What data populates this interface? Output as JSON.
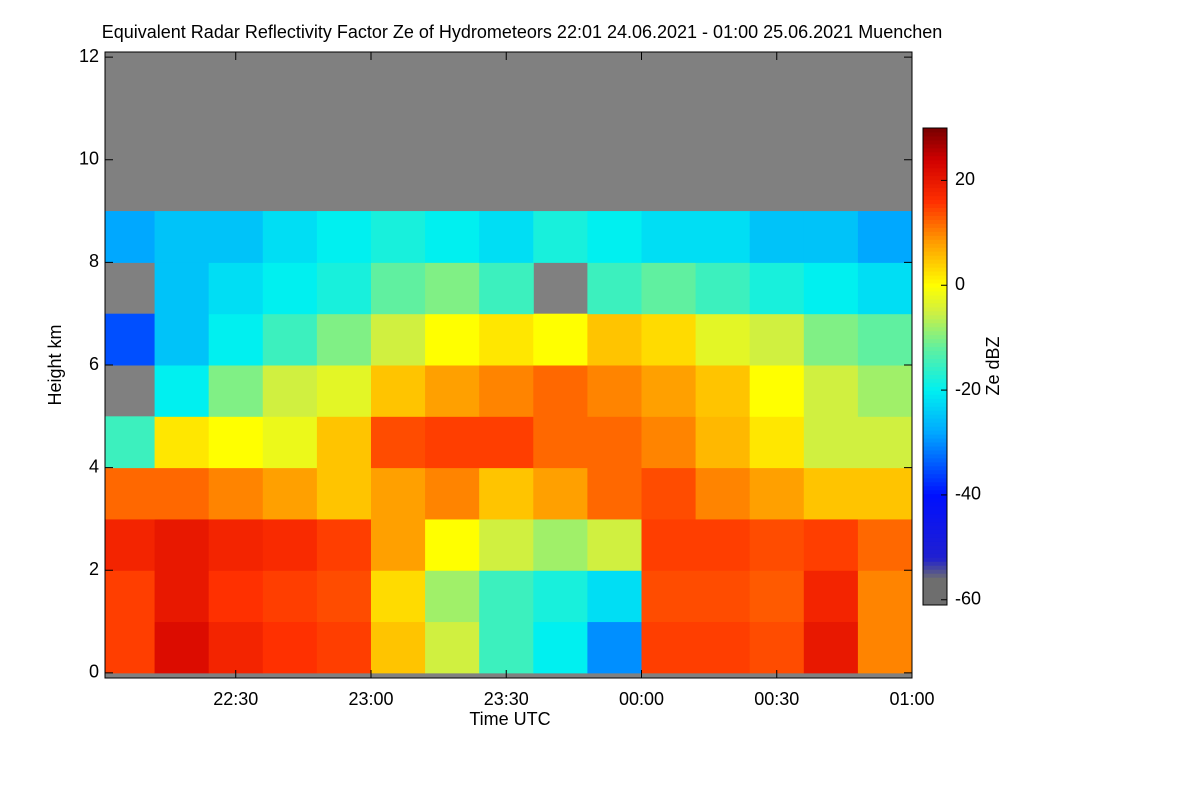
{
  "chart_data": {
    "type": "heatmap",
    "title": "Equivalent Radar Reflectivity Factor Ze of Hydrometeors   22:01 24.06.2021 - 01:00 25.06.2021 Muenchen",
    "x_label": "Time UTC",
    "y_label": "Height km",
    "colorbar_label": "Ze dBZ",
    "xlim": [
      22.0167,
      25.0
    ],
    "xticks": [
      {
        "value": 22.5,
        "label": "22:30"
      },
      {
        "value": 23.0,
        "label": "23:00"
      },
      {
        "value": 23.5,
        "label": "23:30"
      },
      {
        "value": 24.0,
        "label": "00:00"
      },
      {
        "value": 24.5,
        "label": "00:30"
      },
      {
        "value": 25.0,
        "label": "01:00"
      }
    ],
    "ylim": [
      -0.1,
      12.1
    ],
    "yticks": [
      0,
      2,
      4,
      6,
      8,
      10,
      12
    ],
    "clim": [
      -61,
      30
    ],
    "cticks": [
      -60,
      -40,
      -20,
      0,
      20
    ],
    "colorscale": [
      [
        -61,
        "#6e6e6e"
      ],
      [
        -56,
        "#6e6e6e"
      ],
      [
        -52,
        "#2020d0"
      ],
      [
        -40,
        "#0010ff"
      ],
      [
        -28,
        "#00a8ff"
      ],
      [
        -20,
        "#00f0f0"
      ],
      [
        -12,
        "#60f0a0"
      ],
      [
        -5,
        "#d0f040"
      ],
      [
        0,
        "#ffff00"
      ],
      [
        8,
        "#ffa000"
      ],
      [
        16,
        "#ff3000"
      ],
      [
        24,
        "#d00000"
      ],
      [
        30,
        "#780000"
      ]
    ],
    "missing_color": "#808080",
    "x": [
      22.1,
      22.3,
      22.5,
      22.7,
      22.9,
      23.1,
      23.3,
      23.5,
      23.7,
      23.9,
      24.1,
      24.3,
      24.5,
      24.7,
      24.9
    ],
    "y": [
      0.5,
      1.5,
      2.5,
      3.5,
      4.5,
      5.5,
      6.5,
      7.5,
      8.5,
      9.5,
      10.5,
      11.5
    ],
    "z": [
      [
        15,
        22,
        18,
        16,
        15,
        5,
        -5,
        -15,
        -20,
        -30,
        15,
        15,
        14,
        20,
        10
      ],
      [
        15,
        20,
        16,
        15,
        14,
        3,
        -8,
        -15,
        -18,
        -22,
        14,
        14,
        13,
        18,
        10
      ],
      [
        18,
        20,
        18,
        17,
        15,
        8,
        0,
        -5,
        -8,
        -5,
        15,
        15,
        14,
        15,
        12
      ],
      [
        12,
        12,
        10,
        8,
        5,
        8,
        10,
        5,
        8,
        12,
        14,
        10,
        8,
        5,
        5
      ],
      [
        -15,
        2,
        0,
        -2,
        5,
        14,
        15,
        15,
        12,
        12,
        10,
        6,
        2,
        -5,
        -5
      ],
      [
        null,
        -20,
        -10,
        -5,
        -3,
        5,
        8,
        10,
        12,
        10,
        8,
        5,
        0,
        -5,
        -8
      ],
      [
        -35,
        -25,
        -20,
        -15,
        -10,
        -5,
        0,
        2,
        0,
        5,
        3,
        -3,
        -5,
        -10,
        -12
      ],
      [
        null,
        -25,
        -22,
        -20,
        -18,
        -12,
        -10,
        -15,
        null,
        -15,
        -12,
        -15,
        -18,
        -20,
        -22
      ],
      [
        -28,
        -25,
        -25,
        -22,
        -20,
        -18,
        -20,
        -22,
        -18,
        -20,
        -22,
        -22,
        -25,
        -25,
        -28
      ],
      [
        null,
        null,
        null,
        null,
        null,
        null,
        null,
        null,
        null,
        null,
        null,
        null,
        null,
        null,
        null
      ],
      [
        null,
        null,
        null,
        null,
        null,
        null,
        null,
        null,
        null,
        null,
        null,
        null,
        null,
        null,
        null
      ],
      [
        null,
        null,
        null,
        null,
        null,
        null,
        null,
        null,
        null,
        null,
        null,
        null,
        null,
        null,
        null
      ]
    ]
  }
}
